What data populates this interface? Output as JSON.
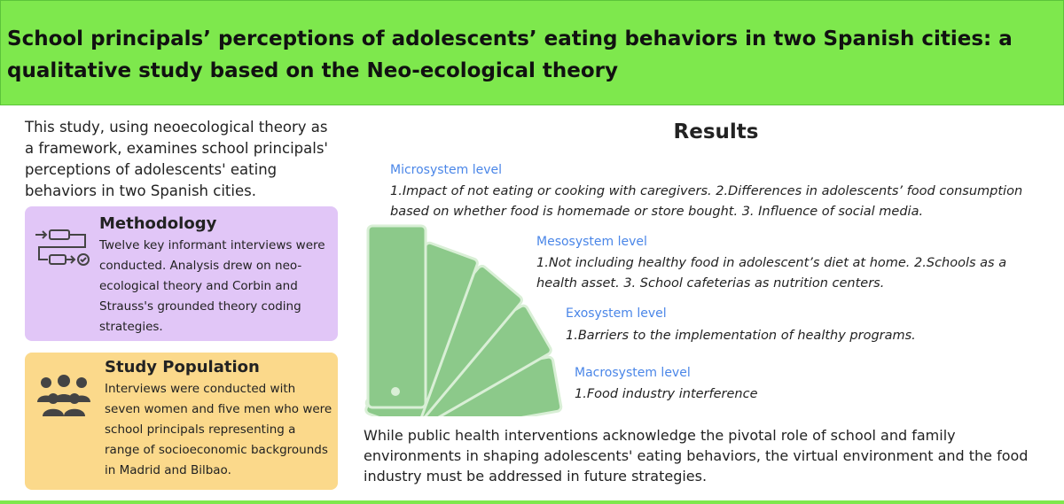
{
  "header": {
    "title": "School principals’ perceptions of adolescents’ eating behaviors in two Spanish cities: a qualitative study based on the Neo-ecological theory"
  },
  "intro": "This study, using neoecological theory as a framework, examines school principals' perceptions of adolescents' eating behaviors in two Spanish cities.",
  "methodology": {
    "title": "Methodology",
    "text": "Twelve key informant interviews were conducted. Analysis drew on neo-ecological theory and Corbin and Strauss's grounded theory coding strategies."
  },
  "population": {
    "title": "Study Population",
    "text": "Interviews were conducted with seven women and five men who were school principals representing a range of socioeconomic backgrounds in Madrid and Bilbao."
  },
  "results": {
    "title": "Results",
    "levels": [
      {
        "name": "Microsystem level",
        "text": "1.Impact of not eating or cooking with caregivers. 2.Differences in adolescents’ food consumption based on whether food is homemade or store bought. 3. Influence of social media."
      },
      {
        "name": "Mesosystem level",
        "text": "1.Not including healthy food  in adolescent’s diet at home. 2.Schools as a health asset. 3. School cafeterias as nutrition centers."
      },
      {
        "name": "Exosystem level",
        "text": "1.Barriers to the implementation of healthy programs."
      },
      {
        "name": "Macrosystem level",
        "text": "1.Food industry interference"
      }
    ]
  },
  "conclusion": "While public health interventions acknowledge the pivotal role of school and family environments in shaping adolescents' eating behaviors, the virtual environment and the food industry must be addressed in future strategies."
}
